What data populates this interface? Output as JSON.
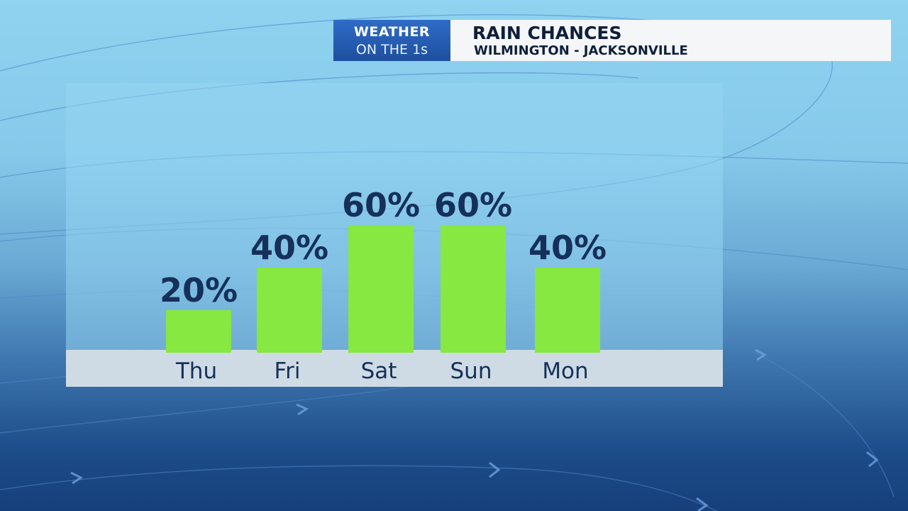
{
  "header": {
    "logo_line1": "WEATHER",
    "logo_line2": "ON THE 1s",
    "title": "RAIN CHANCES",
    "subtitle": "WILMINGTON - JACKSONVILLE"
  },
  "colors": {
    "bar": "#86e840",
    "label": "#15305a",
    "logo_blue": "#2f6cc8"
  },
  "chart_data": {
    "type": "bar",
    "title": "RAIN CHANCES",
    "categories": [
      "Thu",
      "Fri",
      "Sat",
      "Sun",
      "Mon"
    ],
    "values": [
      20,
      40,
      60,
      60,
      40
    ],
    "value_labels": [
      "20%",
      "40%",
      "60%",
      "60%",
      "40%"
    ],
    "ylim": [
      0,
      100
    ],
    "grid": false,
    "legend": "none"
  }
}
